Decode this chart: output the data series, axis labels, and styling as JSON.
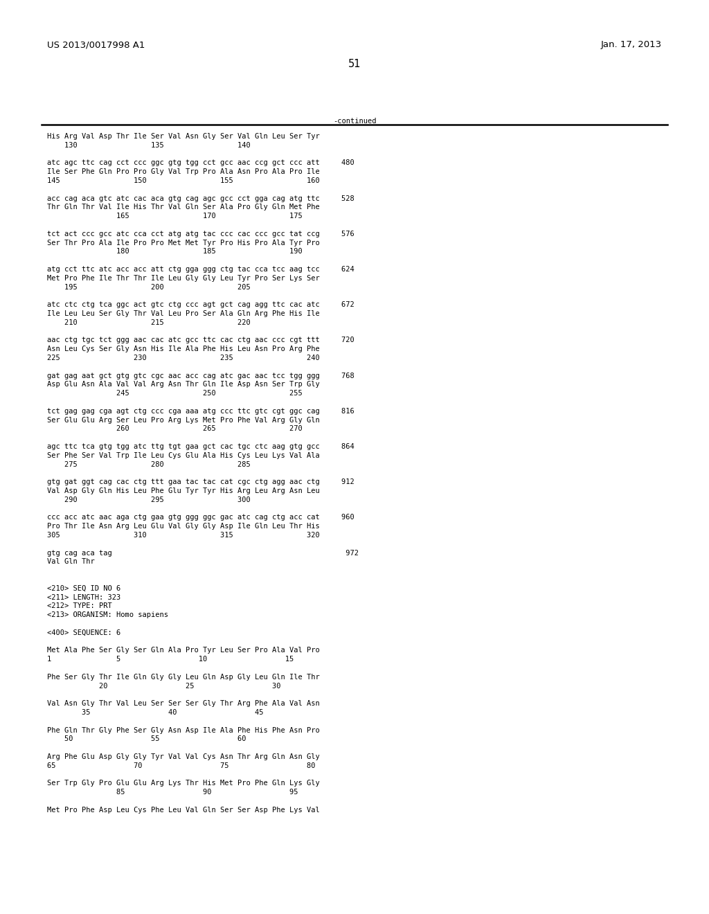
{
  "left_header": "US 2013/0017998 A1",
  "right_header": "Jan. 17, 2013",
  "page_number": "51",
  "continued_label": "-continued",
  "background_color": "#ffffff",
  "text_color": "#000000",
  "font_size": 7.5,
  "header_font_size": 9.5,
  "page_num_font_size": 10.5,
  "content_lines": [
    "His Arg Val Asp Thr Ile Ser Val Asn Gly Ser Val Gln Leu Ser Tyr",
    "    130                 135                 140",
    "",
    "atc agc ttc cag cct ccc ggc gtg tgg cct gcc aac ccg gct ccc att     480",
    "Ile Ser Phe Gln Pro Pro Gly Val Trp Pro Ala Asn Pro Ala Pro Ile",
    "145                 150                 155                 160",
    "",
    "acc cag aca gtc atc cac aca gtg cag agc gcc cct gga cag atg ttc     528",
    "Thr Gln Thr Val Ile His Thr Val Gln Ser Ala Pro Gly Gln Met Phe",
    "                165                 170                 175",
    "",
    "tct act ccc gcc atc cca cct atg atg tac ccc cac ccc gcc tat ccg     576",
    "Ser Thr Pro Ala Ile Pro Pro Met Met Tyr Pro His Pro Ala Tyr Pro",
    "                180                 185                 190",
    "",
    "atg cct ttc atc acc acc att ctg gga ggg ctg tac cca tcc aag tcc     624",
    "Met Pro Phe Ile Thr Thr Ile Leu Gly Gly Leu Tyr Pro Ser Lys Ser",
    "    195                 200                 205",
    "",
    "atc ctc ctg tca ggc act gtc ctg ccc agt gct cag agg ttc cac atc     672",
    "Ile Leu Leu Ser Gly Thr Val Leu Pro Ser Ala Gln Arg Phe His Ile",
    "    210                 215                 220",
    "",
    "aac ctg tgc tct ggg aac cac atc gcc ttc cac ctg aac ccc cgt ttt     720",
    "Asn Leu Cys Ser Gly Asn His Ile Ala Phe His Leu Asn Pro Arg Phe",
    "225                 230                 235                 240",
    "",
    "gat gag aat gct gtg gtc cgc aac acc cag atc gac aac tcc tgg ggg     768",
    "Asp Glu Asn Ala Val Val Arg Asn Thr Gln Ile Asp Asn Ser Trp Gly",
    "                245                 250                 255",
    "",
    "tct gag gag cga agt ctg ccc cga aaa atg ccc ttc gtc cgt ggc cag     816",
    "Ser Glu Glu Arg Ser Leu Pro Arg Lys Met Pro Phe Val Arg Gly Gln",
    "                260                 265                 270",
    "",
    "agc ttc tca gtg tgg atc ttg tgt gaa gct cac tgc ctc aag gtg gcc     864",
    "Ser Phe Ser Val Trp Ile Leu Cys Glu Ala His Cys Leu Lys Val Ala",
    "    275                 280                 285",
    "",
    "gtg gat ggt cag cac ctg ttt gaa tac tac cat cgc ctg agg aac ctg     912",
    "Val Asp Gly Gln His Leu Phe Glu Tyr Tyr His Arg Leu Arg Asn Leu",
    "    290                 295                 300",
    "",
    "ccc acc atc aac aga ctg gaa gtg ggg ggc gac atc cag ctg acc cat     960",
    "Pro Thr Ile Asn Arg Leu Glu Val Gly Gly Asp Ile Gln Leu Thr His",
    "305                 310                 315                 320",
    "",
    "gtg cag aca tag                                                      972",
    "Val Gln Thr",
    "",
    "",
    "<210> SEQ ID NO 6",
    "<211> LENGTH: 323",
    "<212> TYPE: PRT",
    "<213> ORGANISM: Homo sapiens",
    "",
    "<400> SEQUENCE: 6",
    "",
    "Met Ala Phe Ser Gly Ser Gln Ala Pro Tyr Leu Ser Pro Ala Val Pro",
    "1               5                  10                  15",
    "",
    "Phe Ser Gly Thr Ile Gln Gly Gly Leu Gln Asp Gly Leu Gln Ile Thr",
    "            20                  25                  30",
    "",
    "Val Asn Gly Thr Val Leu Ser Ser Ser Gly Thr Arg Phe Ala Val Asn",
    "        35                  40                  45",
    "",
    "Phe Gln Thr Gly Phe Ser Gly Asn Asp Ile Ala Phe His Phe Asn Pro",
    "    50                  55                  60",
    "",
    "Arg Phe Glu Asp Gly Gly Tyr Val Val Cys Asn Thr Arg Gln Asn Gly",
    "65                  70                  75                  80",
    "",
    "Ser Trp Gly Pro Glu Glu Arg Lys Thr His Met Pro Phe Gln Lys Gly",
    "                85                  90                  95",
    "",
    "Met Pro Phe Asp Leu Cys Phe Leu Val Gln Ser Ser Asp Phe Lys Val"
  ]
}
